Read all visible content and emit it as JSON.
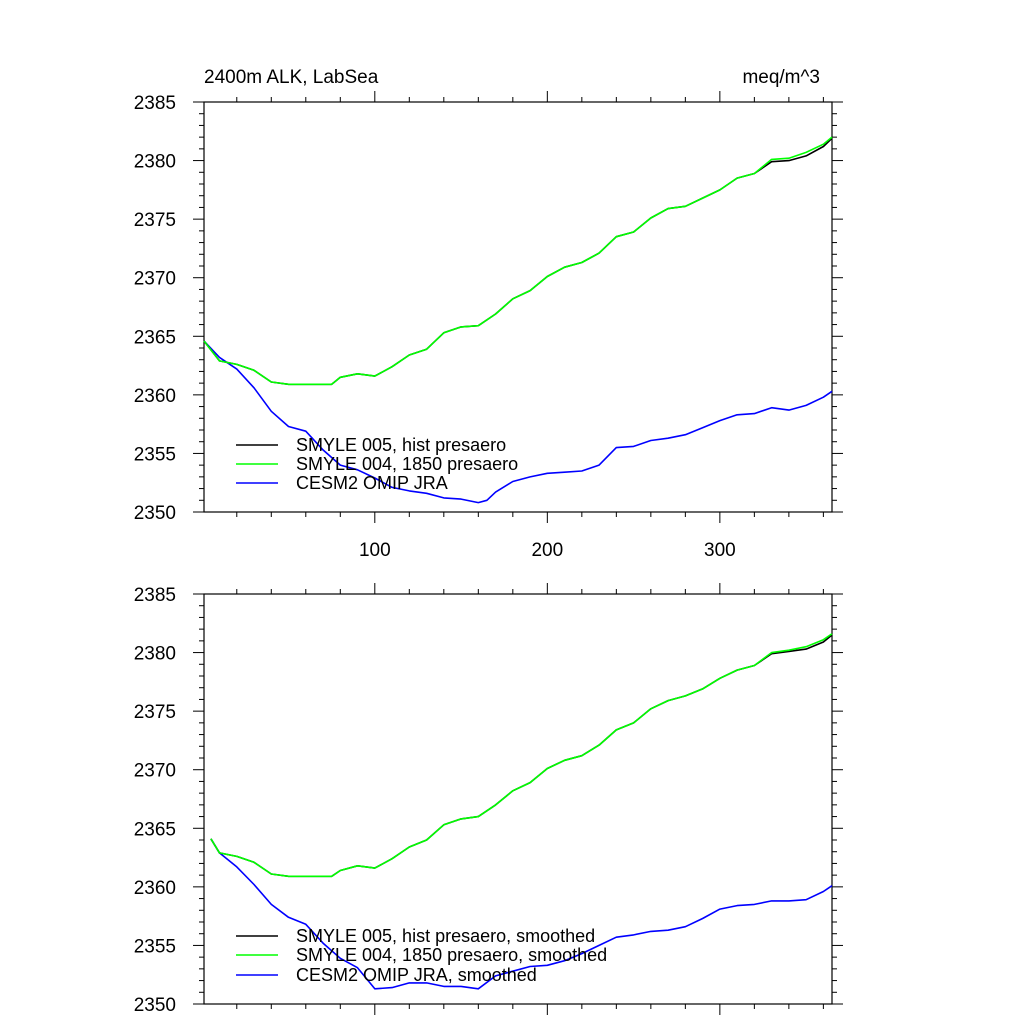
{
  "chart_data": [
    {
      "type": "line",
      "title": "2400m ALK, LabSea",
      "units": "meq/m^3",
      "xlim": [
        1,
        365
      ],
      "ylim": [
        2350,
        2385
      ],
      "xticks": [
        100,
        200,
        300
      ],
      "yticks": [
        2350,
        2355,
        2360,
        2365,
        2370,
        2375,
        2380,
        2385
      ],
      "xtick_labels": [
        "100",
        "200",
        "300"
      ],
      "ytick_labels": [
        "2350",
        "2355",
        "2360",
        "2365",
        "2370",
        "2375",
        "2380",
        "2385"
      ],
      "legend_position": "bottom-left",
      "series": [
        {
          "name": "SMYLE 005, hist presaero",
          "color": "#000000",
          "x": [
            1,
            10,
            20,
            30,
            40,
            50,
            60,
            70,
            75,
            80,
            90,
            100,
            110,
            120,
            130,
            140,
            150,
            160,
            170,
            180,
            190,
            200,
            210,
            220,
            230,
            240,
            250,
            260,
            270,
            280,
            290,
            300,
            310,
            320,
            330,
            340,
            350,
            360,
            365
          ],
          "y": [
            2364.6,
            2362.9,
            2362.6,
            2362.1,
            2361.1,
            2360.9,
            2360.9,
            2360.9,
            2360.9,
            2361.5,
            2361.8,
            2361.6,
            2362.4,
            2363.4,
            2363.9,
            2365.3,
            2365.8,
            2365.9,
            2366.9,
            2368.2,
            2368.9,
            2370.1,
            2370.9,
            2371.3,
            2372.1,
            2373.5,
            2373.9,
            2375.1,
            2375.9,
            2376.1,
            2376.8,
            2377.5,
            2378.5,
            2378.9,
            2379.9,
            2380.0,
            2380.4,
            2381.2,
            2381.9
          ]
        },
        {
          "name": "SMYLE 004, 1850 presaero",
          "color": "#00ff00",
          "x": [
            1,
            10,
            20,
            30,
            40,
            50,
            60,
            70,
            75,
            80,
            90,
            100,
            110,
            120,
            130,
            140,
            150,
            160,
            170,
            180,
            190,
            200,
            210,
            220,
            230,
            240,
            250,
            260,
            270,
            280,
            290,
            300,
            310,
            320,
            330,
            340,
            350,
            360,
            365
          ],
          "y": [
            2364.6,
            2362.9,
            2362.6,
            2362.1,
            2361.1,
            2360.9,
            2360.9,
            2360.9,
            2360.9,
            2361.5,
            2361.8,
            2361.6,
            2362.4,
            2363.4,
            2363.9,
            2365.3,
            2365.8,
            2365.9,
            2366.9,
            2368.2,
            2368.9,
            2370.1,
            2370.9,
            2371.3,
            2372.1,
            2373.5,
            2373.9,
            2375.1,
            2375.9,
            2376.1,
            2376.8,
            2377.5,
            2378.5,
            2378.9,
            2380.1,
            2380.2,
            2380.7,
            2381.4,
            2382.0
          ]
        },
        {
          "name": "CESM2 OMIP JRA",
          "color": "#0000ff",
          "x": [
            1,
            10,
            20,
            30,
            40,
            50,
            60,
            70,
            80,
            90,
            100,
            110,
            120,
            130,
            140,
            150,
            160,
            165,
            170,
            180,
            190,
            200,
            210,
            220,
            230,
            240,
            250,
            260,
            270,
            280,
            290,
            300,
            310,
            320,
            330,
            340,
            350,
            360,
            365
          ],
          "y": [
            2364.6,
            2363.2,
            2362.2,
            2360.6,
            2358.6,
            2357.3,
            2356.9,
            2355.3,
            2354.0,
            2353.6,
            2352.9,
            2352.1,
            2351.8,
            2351.6,
            2351.2,
            2351.1,
            2350.8,
            2351.0,
            2351.7,
            2352.6,
            2353.0,
            2353.3,
            2353.4,
            2353.5,
            2354.0,
            2355.5,
            2355.6,
            2356.1,
            2356.3,
            2356.6,
            2357.2,
            2357.8,
            2358.3,
            2358.4,
            2358.9,
            2358.7,
            2359.1,
            2359.8,
            2360.3
          ]
        }
      ]
    },
    {
      "type": "line",
      "xlim": [
        1,
        365
      ],
      "ylim": [
        2350,
        2385
      ],
      "xticks": [
        100,
        200,
        300
      ],
      "yticks": [
        2350,
        2355,
        2360,
        2365,
        2370,
        2375,
        2380,
        2385
      ],
      "ytick_labels": [
        "2350",
        "2355",
        "2360",
        "2365",
        "2370",
        "2375",
        "2380",
        "2385"
      ],
      "legend_position": "bottom-left",
      "series": [
        {
          "name": "SMYLE 005, hist presaero, smoothed",
          "color": "#000000",
          "x": [
            5,
            10,
            20,
            30,
            40,
            50,
            60,
            70,
            75,
            80,
            90,
            100,
            110,
            120,
            130,
            140,
            150,
            160,
            170,
            180,
            190,
            200,
            210,
            220,
            230,
            240,
            250,
            260,
            270,
            280,
            290,
            300,
            310,
            320,
            330,
            340,
            350,
            360,
            365
          ],
          "y": [
            2364.1,
            2362.9,
            2362.6,
            2362.1,
            2361.1,
            2360.9,
            2360.9,
            2360.9,
            2360.9,
            2361.4,
            2361.8,
            2361.6,
            2362.4,
            2363.4,
            2364.0,
            2365.3,
            2365.8,
            2366.0,
            2367.0,
            2368.2,
            2368.9,
            2370.1,
            2370.8,
            2371.2,
            2372.1,
            2373.4,
            2374.0,
            2375.2,
            2375.9,
            2376.3,
            2376.9,
            2377.8,
            2378.5,
            2378.9,
            2379.9,
            2380.1,
            2380.3,
            2380.9,
            2381.5
          ]
        },
        {
          "name": "SMYLE 004, 1850 presaero, smoothed",
          "color": "#00ff00",
          "x": [
            5,
            10,
            20,
            30,
            40,
            50,
            60,
            70,
            75,
            80,
            90,
            100,
            110,
            120,
            130,
            140,
            150,
            160,
            170,
            180,
            190,
            200,
            210,
            220,
            230,
            240,
            250,
            260,
            270,
            280,
            290,
            300,
            310,
            320,
            330,
            340,
            350,
            360,
            365
          ],
          "y": [
            2364.1,
            2362.9,
            2362.6,
            2362.1,
            2361.1,
            2360.9,
            2360.9,
            2360.9,
            2360.9,
            2361.4,
            2361.8,
            2361.6,
            2362.4,
            2363.4,
            2364.0,
            2365.3,
            2365.8,
            2366.0,
            2367.0,
            2368.2,
            2368.9,
            2370.1,
            2370.8,
            2371.2,
            2372.1,
            2373.4,
            2374.0,
            2375.2,
            2375.9,
            2376.3,
            2376.9,
            2377.8,
            2378.5,
            2378.9,
            2380.0,
            2380.2,
            2380.5,
            2381.1,
            2381.6
          ]
        },
        {
          "name": "CESM2 OMIP JRA, smoothed",
          "color": "#0000ff",
          "x": [
            5,
            10,
            20,
            30,
            40,
            50,
            60,
            70,
            80,
            90,
            100,
            110,
            120,
            130,
            140,
            150,
            160,
            170,
            180,
            190,
            200,
            210,
            220,
            230,
            240,
            250,
            260,
            270,
            280,
            290,
            300,
            310,
            320,
            330,
            340,
            350,
            360,
            365
          ],
          "y": [
            2364.1,
            2362.9,
            2361.7,
            2360.2,
            2358.5,
            2357.4,
            2356.8,
            2355.2,
            2353.9,
            2353.1,
            2351.3,
            2351.4,
            2351.8,
            2351.8,
            2351.5,
            2351.5,
            2351.3,
            2352.4,
            2352.8,
            2353.2,
            2353.3,
            2353.7,
            2354.3,
            2355.0,
            2355.7,
            2355.9,
            2356.2,
            2356.3,
            2356.6,
            2357.3,
            2358.1,
            2358.4,
            2358.5,
            2358.8,
            2358.8,
            2358.9,
            2359.6,
            2360.1
          ]
        }
      ]
    }
  ]
}
